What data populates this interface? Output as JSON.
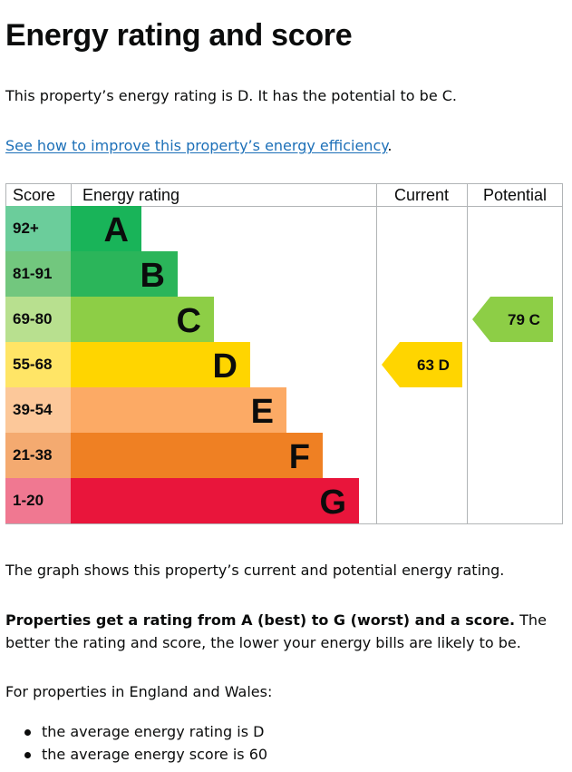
{
  "page": {
    "title": "Energy rating and score",
    "intro": "This property’s energy rating is D. It has the potential to be C.",
    "link_text": "See how to improve this property’s energy efficiency",
    "link_suffix": ".",
    "graph_note": "The graph shows this property’s current and potential energy rating.",
    "rating_bold": "Properties get a rating from A (best) to G (worst) and a score.",
    "rating_rest": " The better the rating and score, the lower your energy bills are likely to be.",
    "region_note": "For properties in England and Wales:",
    "bullets": [
      "the average energy rating is D",
      "the average energy score is 60"
    ]
  },
  "chart_data": {
    "type": "bar",
    "headers": {
      "score": "Score",
      "rating": "Energy rating",
      "current": "Current",
      "potential": "Potential"
    },
    "bands": [
      {
        "letter": "A",
        "range": "92+",
        "color": "#19b459",
        "score_bg": "#6bcd9b"
      },
      {
        "letter": "B",
        "range": "81-91",
        "color": "#2bb55a",
        "score_bg": "#72c77e"
      },
      {
        "letter": "C",
        "range": "69-80",
        "color": "#8dce46",
        "score_bg": "#b8e08f"
      },
      {
        "letter": "D",
        "range": "55-68",
        "color": "#ffd500",
        "score_bg": "#ffe566"
      },
      {
        "letter": "E",
        "range": "39-54",
        "color": "#fcaa65",
        "score_bg": "#fcc89a"
      },
      {
        "letter": "F",
        "range": "21-38",
        "color": "#ef8023",
        "score_bg": "#f4aa70"
      },
      {
        "letter": "G",
        "range": "1-20",
        "color": "#e9153b",
        "score_bg": "#f07891"
      }
    ],
    "current": {
      "score": 63,
      "letter": "D",
      "label": "63  D",
      "color": "#ffd500"
    },
    "potential": {
      "score": 79,
      "letter": "C",
      "label": "79  C",
      "color": "#8dce46"
    }
  }
}
